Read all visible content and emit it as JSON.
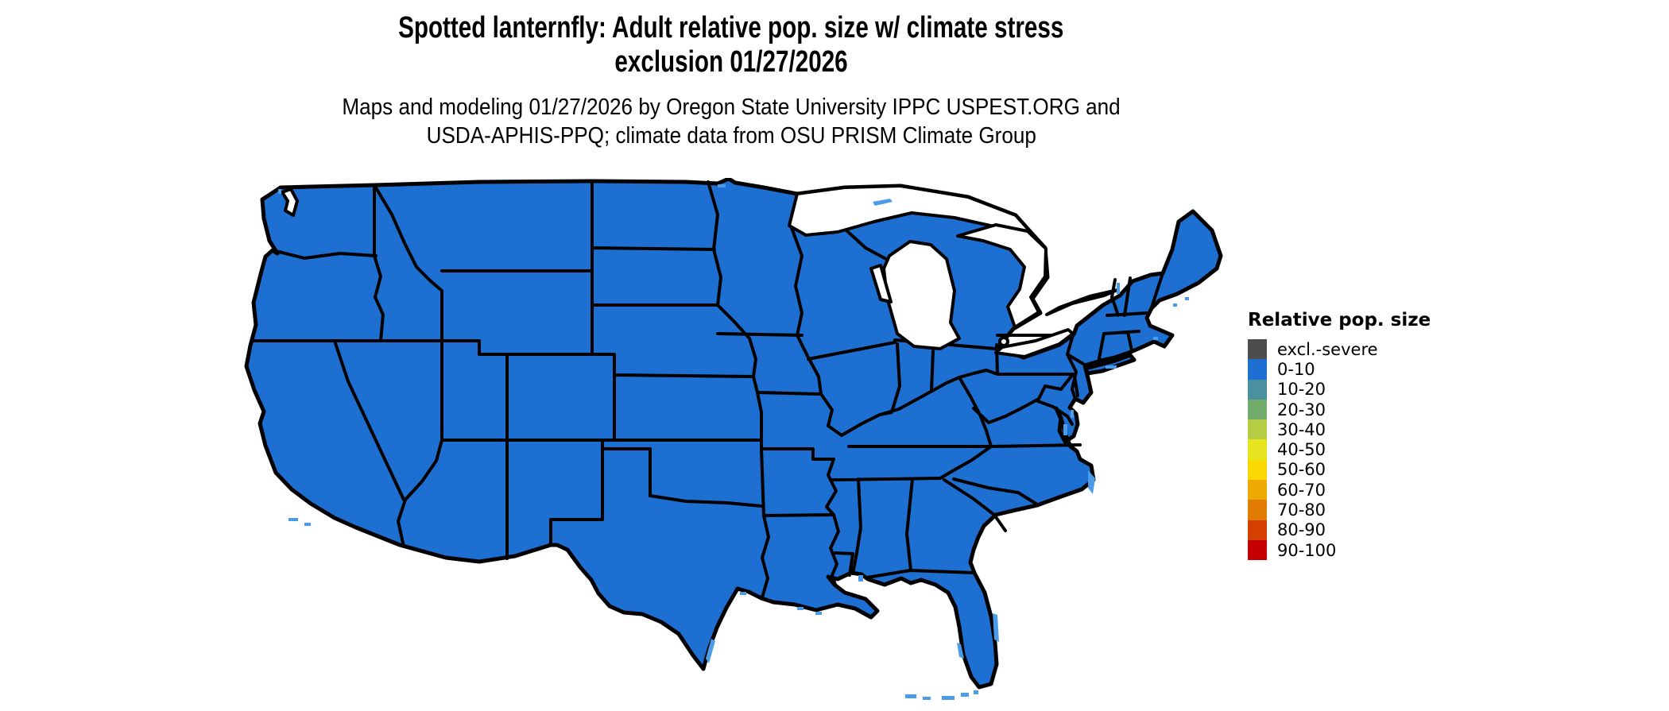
{
  "header": {
    "title_line1": "Spotted lanternfly: Adult relative pop. size w/ climate stress",
    "title_line2": "exclusion 01/27/2026",
    "subtitle_line1": "Maps and modeling 01/27/2026 by Oregon State University IPPC USPEST.ORG and",
    "subtitle_line2": "USDA-APHIS-PPQ; climate data from OSU PRISM Climate Group"
  },
  "legend": {
    "title": "Relative pop. size",
    "items": [
      {
        "label": "excl.-severe",
        "color": "#4d4d4d"
      },
      {
        "label": "0-10",
        "color": "#1d6fd1"
      },
      {
        "label": "10-20",
        "color": "#4a90a0"
      },
      {
        "label": "20-30",
        "color": "#72ad6e"
      },
      {
        "label": "30-40",
        "color": "#b4cd44"
      },
      {
        "label": "40-50",
        "color": "#e5e41f"
      },
      {
        "label": "50-60",
        "color": "#fad900"
      },
      {
        "label": "60-70",
        "color": "#efaa02"
      },
      {
        "label": "70-80",
        "color": "#e17c00"
      },
      {
        "label": "80-90",
        "color": "#d54000"
      },
      {
        "label": "90-100",
        "color": "#c60000"
      }
    ]
  },
  "map": {
    "region": "Contiguous United States",
    "colors": {
      "land": "#1d6fd1",
      "border": "#000000",
      "water": "#ffffff",
      "water_accent": "#4a9ce8"
    }
  },
  "chart_data": {
    "type": "choropleth",
    "title": "Spotted lanternfly adult relative population size with climate stress exclusion, 01/27/2026",
    "legend_classes": [
      "excl.-severe",
      "0-10",
      "10-20",
      "20-30",
      "30-40",
      "40-50",
      "50-60",
      "60-70",
      "70-80",
      "80-90",
      "90-100"
    ],
    "legend_colors": [
      "#4d4d4d",
      "#1d6fd1",
      "#4a90a0",
      "#72ad6e",
      "#b4cd44",
      "#e5e41f",
      "#fad900",
      "#efaa02",
      "#e17c00",
      "#d54000",
      "#c60000"
    ],
    "all_visible_land_class": "0-10",
    "legend_position": "right"
  }
}
